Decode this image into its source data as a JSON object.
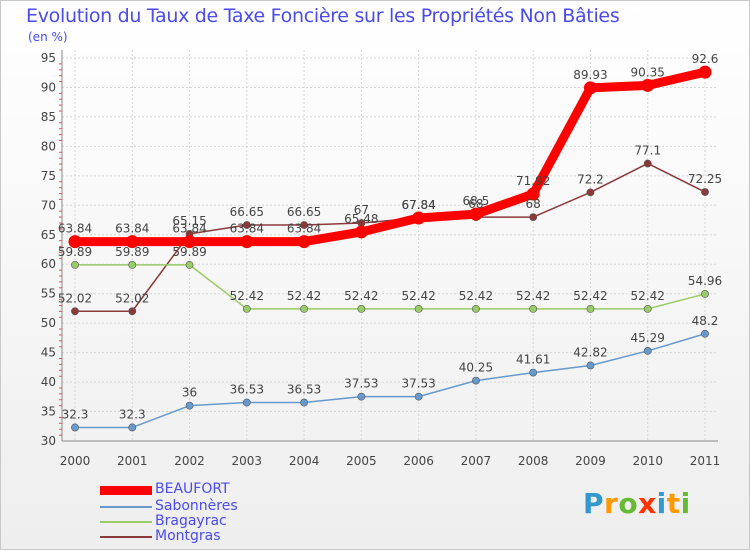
{
  "header": {
    "title": "Evolution du Taux de Taxe Foncière sur les Propriétés Non Bâties",
    "subtitle": "(en %)"
  },
  "legend": {
    "items": [
      {
        "label": "BEAUFORT",
        "color": "#ff0000"
      },
      {
        "label": "Sabonnères",
        "color": "#6699cc"
      },
      {
        "label": "Bragayrac",
        "color": "#99cc66"
      },
      {
        "label": "Montgras",
        "color": "#8b3a3a"
      }
    ]
  },
  "logo": {
    "letters": [
      "P",
      "r",
      "o",
      "x",
      "i",
      "t",
      "i"
    ],
    "colors": [
      "#3399cc",
      "#ff9900",
      "#66bb33",
      "#ff3300",
      "#3399cc",
      "#ff9900",
      "#66bb33"
    ]
  },
  "chart_data": {
    "type": "line",
    "title": "Evolution du Taux de Taxe Foncière sur les Propriétés Non Bâties",
    "ylabel": "(en %)",
    "xlabel": "",
    "x": [
      "2000",
      "2001",
      "2002",
      "2003",
      "2004",
      "2005",
      "2006",
      "2007",
      "2008",
      "2009",
      "2010",
      "2011"
    ],
    "ylim": [
      30,
      95
    ],
    "yticks": [
      30,
      35,
      40,
      45,
      50,
      55,
      60,
      65,
      70,
      75,
      80,
      85,
      90,
      95
    ],
    "grid": true,
    "series": [
      {
        "name": "Montgras",
        "color": "#8b3a3a",
        "values": [
          52.02,
          52.02,
          65.15,
          66.65,
          66.65,
          67,
          67.84,
          68,
          68,
          72.2,
          77.1,
          72.25
        ],
        "labels": [
          "52.02",
          "52.02",
          "65.15",
          "66.65",
          "66.65",
          "67",
          "67.84",
          "68",
          "68",
          "72.2",
          "77.1",
          "72.25"
        ]
      },
      {
        "name": "Bragayrac",
        "color": "#99cc66",
        "values": [
          59.89,
          59.89,
          59.89,
          52.42,
          52.42,
          52.42,
          52.42,
          52.42,
          52.42,
          52.42,
          52.42,
          54.96
        ],
        "labels": [
          "59.89",
          "59.89",
          "59.89",
          "52.42",
          "52.42",
          "52.42",
          "52.42",
          "52.42",
          "52.42",
          "52.42",
          "52.42",
          "54.96"
        ]
      },
      {
        "name": "Sabonnères",
        "color": "#6699cc",
        "values": [
          32.3,
          32.3,
          36,
          36.53,
          36.53,
          37.53,
          37.53,
          40.25,
          41.61,
          42.82,
          45.29,
          48.2
        ],
        "labels": [
          "32.3",
          "32.3",
          "36",
          "36.53",
          "36.53",
          "37.53",
          "37.53",
          "40.25",
          "41.61",
          "42.82",
          "45.29",
          "48.2"
        ]
      },
      {
        "name": "BEAUFORT",
        "color": "#ff0000",
        "values": [
          63.84,
          63.84,
          63.84,
          63.84,
          63.84,
          65.48,
          67.84,
          68.5,
          71.92,
          89.93,
          90.35,
          92.6
        ],
        "labels": [
          "63.84",
          "63.84",
          "63.84",
          "63.84",
          "63.84",
          "65.48",
          "67.84",
          "68.5",
          "71.92",
          "89.93",
          "90.35",
          "92.6"
        ]
      }
    ]
  }
}
